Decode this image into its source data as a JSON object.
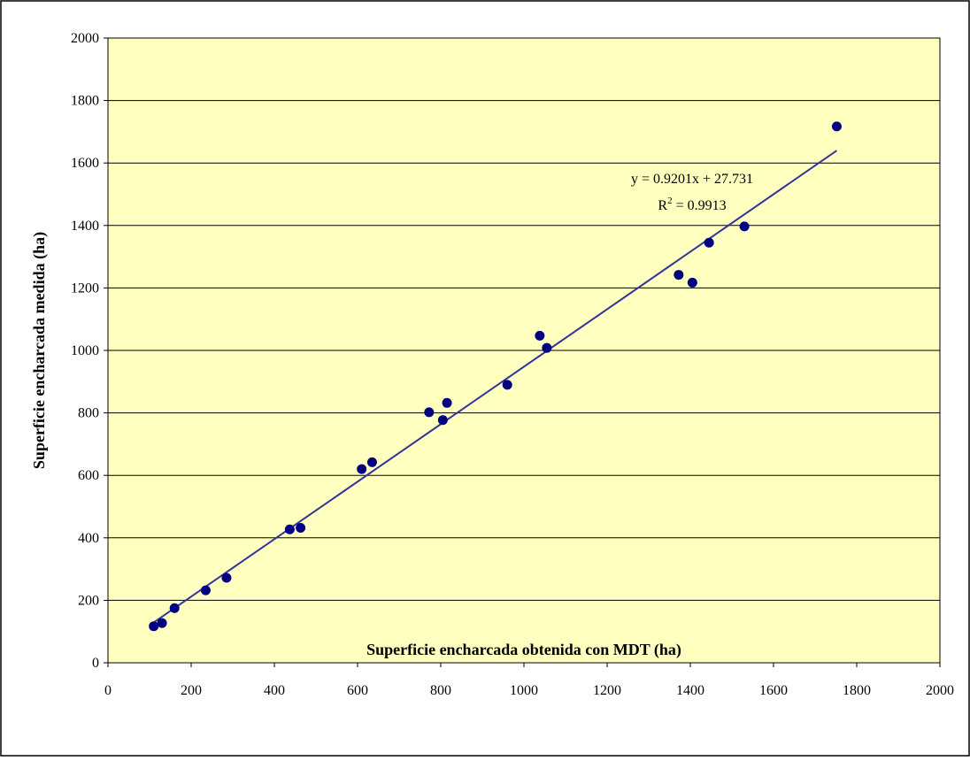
{
  "chart_data": {
    "type": "scatter",
    "title": "",
    "xlabel": "Superficie encharcada obtenida con MDT (ha)",
    "ylabel": "Superficie encharcada medida (ha)",
    "xlim": [
      0,
      2000
    ],
    "ylim": [
      0,
      2000
    ],
    "x_ticks": [
      "0",
      "200",
      "400",
      "600",
      "800",
      "1000",
      "1200",
      "1400",
      "1600",
      "1800",
      "2000"
    ],
    "y_ticks": [
      "0",
      "200",
      "400",
      "600",
      "800",
      "1000",
      "1200",
      "1400",
      "1600",
      "1800",
      "2000"
    ],
    "grid": "horizontal",
    "legend": "none",
    "series": [
      {
        "points": [
          {
            "x": 110,
            "y": 117
          },
          {
            "x": 130,
            "y": 127
          },
          {
            "x": 160,
            "y": 175
          },
          {
            "x": 235,
            "y": 232
          },
          {
            "x": 285,
            "y": 272
          },
          {
            "x": 437,
            "y": 427
          },
          {
            "x": 463,
            "y": 432
          },
          {
            "x": 610,
            "y": 620
          },
          {
            "x": 635,
            "y": 642
          },
          {
            "x": 772,
            "y": 802
          },
          {
            "x": 805,
            "y": 777
          },
          {
            "x": 815,
            "y": 832
          },
          {
            "x": 960,
            "y": 890
          },
          {
            "x": 1038,
            "y": 1047
          },
          {
            "x": 1055,
            "y": 1008
          },
          {
            "x": 1372,
            "y": 1242
          },
          {
            "x": 1405,
            "y": 1217
          },
          {
            "x": 1445,
            "y": 1345
          },
          {
            "x": 1530,
            "y": 1397
          },
          {
            "x": 1752,
            "y": 1717
          }
        ]
      }
    ],
    "trendline": {
      "slope": 0.9201,
      "intercept": 27.731,
      "x_start": 110,
      "x_end": 1752,
      "equation": "y = 0.9201x + 27.731",
      "r2_prefix": "R",
      "r2_exponent": "2",
      "r2_suffix": " = 0.9913"
    },
    "colors": {
      "plot_background": "#FFFFC0",
      "marker": "#000080",
      "trendline": "#333399",
      "gridline": "#000000",
      "frame": "#000000"
    }
  }
}
